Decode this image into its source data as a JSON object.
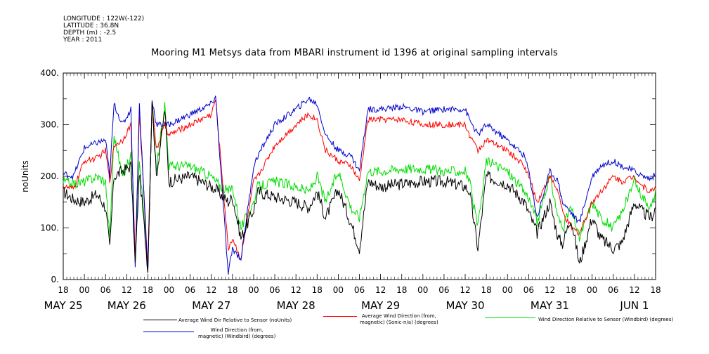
{
  "header": {
    "longitude": "LONGITUDE : 122W(-122)",
    "latitude": "LATITUDE : 36.8N",
    "depth": "DEPTH (m) : -2.5",
    "year": "YEAR : 2011"
  },
  "chart_data": {
    "type": "line",
    "title": "Mooring M1 Metsys data from MBARI instrument id 1396 at original sampling intervals",
    "ylabel": "noUnits",
    "xlabel": "",
    "ylim": [
      0,
      400
    ],
    "xlim": [
      0,
      7.0
    ],
    "x_unit": "days since May 25 18:00, 2011",
    "yticks": [
      0,
      100,
      200,
      300,
      400
    ],
    "ytick_labels": [
      "0.",
      "100.",
      "200.",
      "300.",
      "400."
    ],
    "hour_ticks": [
      "18",
      "00",
      "06",
      "12",
      "18",
      "00",
      "06",
      "12",
      "18",
      "00",
      "06",
      "12",
      "18",
      "00",
      "06",
      "12",
      "18",
      "00",
      "06",
      "12",
      "18",
      "00",
      "06",
      "12",
      "18",
      "00",
      "06",
      "12",
      "18"
    ],
    "day_labels": [
      {
        "label": "MAY 25",
        "x": 0.0
      },
      {
        "label": "MAY 26",
        "x": 0.75
      },
      {
        "label": "MAY 27",
        "x": 1.75
      },
      {
        "label": "MAY 28",
        "x": 2.75
      },
      {
        "label": "MAY 29",
        "x": 3.75
      },
      {
        "label": "MAY 30",
        "x": 4.75
      },
      {
        "label": "MAY 31",
        "x": 5.75
      },
      {
        "label": "JUN  1",
        "x": 6.75
      }
    ],
    "series": [
      {
        "name": "Average Wind Dir Relative to Sensor (noUnits)",
        "color": "#000000",
        "x": [
          0,
          0.12,
          0.25,
          0.4,
          0.5,
          0.55,
          0.6,
          0.7,
          0.8,
          0.85,
          0.9,
          1.0,
          1.05,
          1.1,
          1.2,
          1.25,
          1.5,
          1.75,
          1.8,
          1.95,
          2.0,
          2.1,
          2.25,
          2.3,
          2.5,
          2.75,
          2.9,
          3.0,
          3.1,
          3.25,
          3.4,
          3.5,
          3.6,
          3.75,
          4.0,
          4.25,
          4.5,
          4.75,
          4.8,
          4.9,
          5.0,
          5.25,
          5.45,
          5.5,
          5.6,
          5.75,
          5.85,
          5.9,
          6.0,
          6.1,
          6.25,
          6.35,
          6.5,
          6.6,
          6.75,
          6.85,
          6.95,
          7.0
        ],
        "y": [
          170,
          155,
          150,
          165,
          140,
          60,
          200,
          210,
          220,
          30,
          210,
          20,
          350,
          200,
          330,
          190,
          200,
          180,
          175,
          150,
          160,
          80,
          135,
          170,
          160,
          150,
          140,
          170,
          120,
          175,
          110,
          60,
          190,
          180,
          185,
          190,
          190,
          180,
          170,
          60,
          200,
          185,
          150,
          130,
          90,
          150,
          80,
          70,
          120,
          30,
          120,
          80,
          60,
          70,
          150,
          130,
          120,
          140
        ]
      },
      {
        "name": "Average Wind Direction (from, magnetic) (Sonic-n/a) (degrees)",
        "color": "#ff0000",
        "x": [
          0,
          0.12,
          0.25,
          0.4,
          0.5,
          0.55,
          0.6,
          0.7,
          0.8,
          0.85,
          0.9,
          1.0,
          1.05,
          1.1,
          1.2,
          1.25,
          1.5,
          1.75,
          1.8,
          1.95,
          2.0,
          2.1,
          2.25,
          2.3,
          2.5,
          2.75,
          2.9,
          3.0,
          3.1,
          3.25,
          3.4,
          3.5,
          3.6,
          3.75,
          4.0,
          4.25,
          4.5,
          4.75,
          4.8,
          4.9,
          5.0,
          5.25,
          5.45,
          5.5,
          5.6,
          5.75,
          5.85,
          5.9,
          6.0,
          6.1,
          6.25,
          6.35,
          6.5,
          6.6,
          6.75,
          6.85,
          6.95,
          7.0
        ],
        "y": [
          180,
          175,
          230,
          235,
          250,
          190,
          260,
          270,
          300,
          40,
          320,
          30,
          345,
          250,
          300,
          280,
          300,
          320,
          350,
          60,
          80,
          40,
          190,
          200,
          260,
          300,
          320,
          310,
          250,
          230,
          220,
          190,
          310,
          310,
          310,
          300,
          300,
          300,
          280,
          250,
          270,
          250,
          220,
          200,
          150,
          200,
          170,
          130,
          100,
          90,
          150,
          170,
          200,
          190,
          200,
          180,
          170,
          180
        ]
      },
      {
        "name": "Wind Direction Relative to Sensor (Windbird) (degrees)",
        "color": "#00dd00",
        "x": [
          0,
          0.12,
          0.25,
          0.4,
          0.5,
          0.55,
          0.6,
          0.7,
          0.8,
          0.85,
          0.9,
          1.0,
          1.05,
          1.1,
          1.2,
          1.25,
          1.5,
          1.75,
          1.8,
          1.95,
          2.0,
          2.1,
          2.25,
          2.3,
          2.5,
          2.75,
          2.9,
          3.0,
          3.1,
          3.25,
          3.4,
          3.5,
          3.6,
          3.75,
          4.0,
          4.25,
          4.5,
          4.75,
          4.8,
          4.9,
          5.0,
          5.25,
          5.45,
          5.5,
          5.6,
          5.75,
          5.85,
          5.9,
          6.0,
          6.1,
          6.25,
          6.35,
          6.5,
          6.6,
          6.75,
          6.85,
          6.95,
          7.0
        ],
        "y": [
          190,
          185,
          190,
          200,
          190,
          80,
          280,
          200,
          240,
          40,
          230,
          30,
          340,
          210,
          340,
          220,
          220,
          200,
          190,
          170,
          180,
          100,
          150,
          180,
          190,
          180,
          170,
          200,
          150,
          210,
          140,
          120,
          210,
          210,
          215,
          215,
          210,
          210,
          190,
          100,
          230,
          210,
          170,
          160,
          110,
          200,
          120,
          100,
          140,
          80,
          150,
          120,
          100,
          130,
          190,
          160,
          140,
          170
        ]
      },
      {
        "name": "Wind Direction (from, magnetic) (Windbird) (degrees)",
        "color": "#0000cc",
        "x": [
          0,
          0.12,
          0.25,
          0.4,
          0.5,
          0.55,
          0.6,
          0.7,
          0.8,
          0.85,
          0.9,
          1.0,
          1.05,
          1.1,
          1.2,
          1.25,
          1.5,
          1.75,
          1.8,
          1.95,
          2.0,
          2.1,
          2.25,
          2.3,
          2.5,
          2.75,
          2.9,
          3.0,
          3.1,
          3.25,
          3.4,
          3.5,
          3.6,
          3.75,
          4.0,
          4.25,
          4.5,
          4.75,
          4.8,
          4.9,
          5.0,
          5.25,
          5.45,
          5.5,
          5.6,
          5.75,
          5.85,
          5.9,
          6.0,
          6.1,
          6.25,
          6.35,
          6.5,
          6.6,
          6.75,
          6.85,
          6.95,
          7.0
        ],
        "y": [
          205,
          200,
          255,
          265,
          270,
          200,
          340,
          300,
          330,
          20,
          340,
          10,
          350,
          300,
          300,
          300,
          320,
          340,
          355,
          10,
          60,
          40,
          220,
          240,
          300,
          330,
          350,
          340,
          280,
          250,
          240,
          210,
          330,
          330,
          335,
          325,
          330,
          330,
          310,
          280,
          300,
          270,
          240,
          210,
          120,
          210,
          190,
          150,
          130,
          110,
          200,
          220,
          230,
          220,
          210,
          200,
          195,
          205
        ]
      }
    ],
    "legend": [
      {
        "label": "Average Wind Dir Relative to Sensor (noUnits)",
        "color": "#000000"
      },
      {
        "label": "Average Wind Direction (from,\nmagnetic) (Sonic-n/a) (degrees)",
        "color": "#ff0000"
      },
      {
        "label": "Wind Direction Relative to Sensor (Windbird) (degrees)",
        "color": "#00dd00"
      },
      {
        "label": "Wind Direction (from,\nmagnetic) (Windbird) (degrees)",
        "color": "#0000cc"
      }
    ],
    "legend_placement": "bottom"
  }
}
